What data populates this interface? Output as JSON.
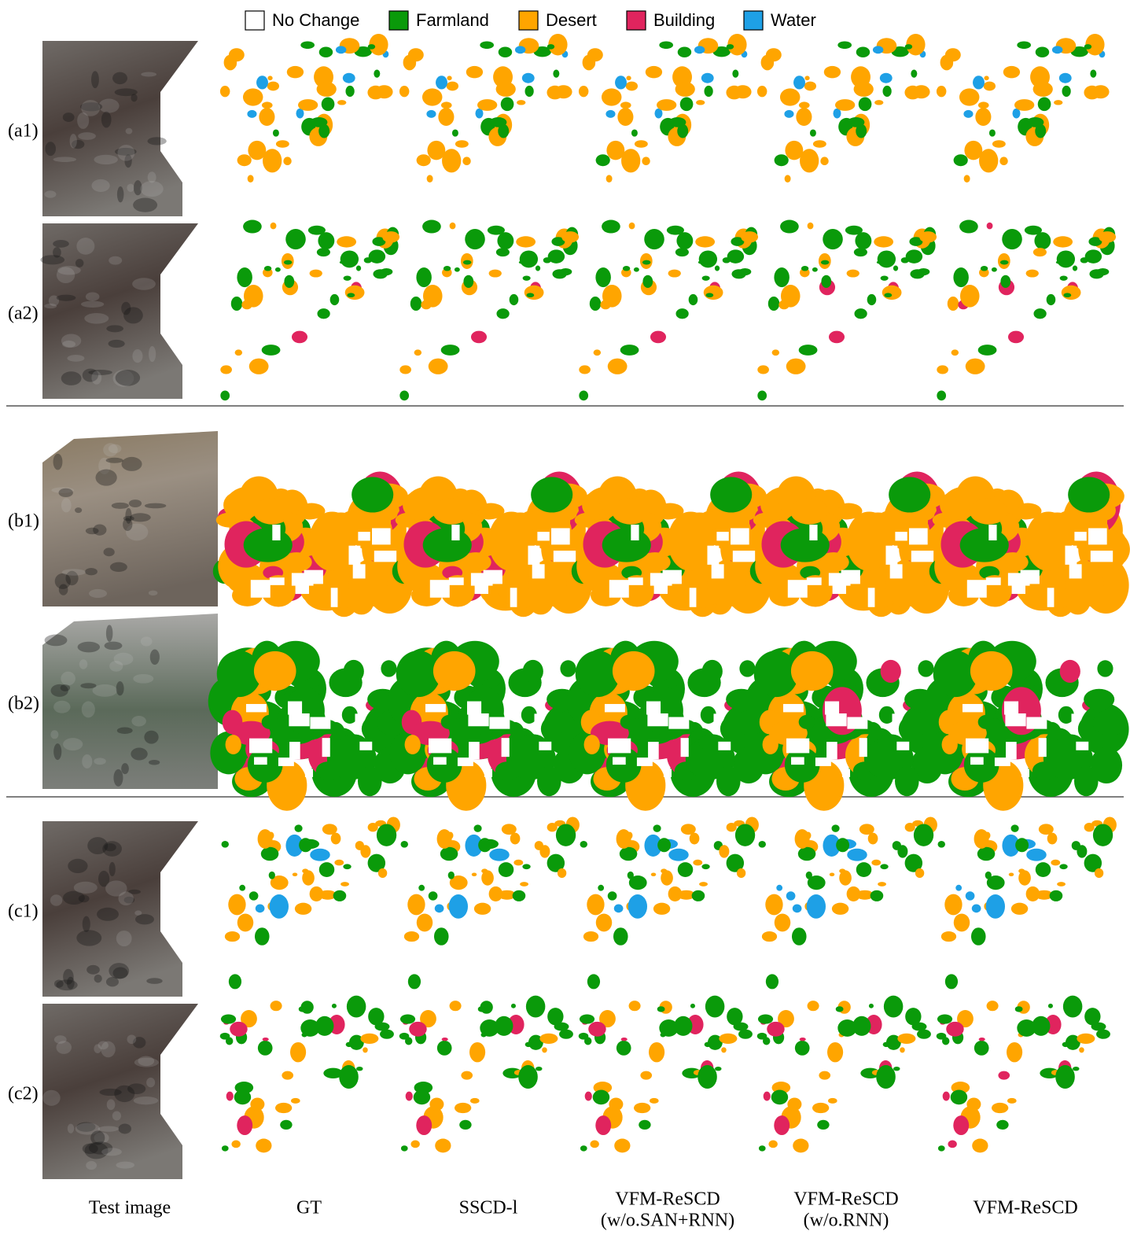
{
  "legend": [
    {
      "label": "No Change",
      "color": "#ffffff"
    },
    {
      "label": "Farmland",
      "color": "#0a9a0a"
    },
    {
      "label": "Desert",
      "color": "#ffa500"
    },
    {
      "label": "Building",
      "color": "#e0245e"
    },
    {
      "label": "Water",
      "color": "#1ea0e6"
    }
  ],
  "rows": [
    "(a1)",
    "(a2)",
    "(b1)",
    "(b2)",
    "(c1)",
    "(c2)"
  ],
  "columns": [
    [
      "Test image"
    ],
    [
      "GT"
    ],
    [
      "SSCD-l"
    ],
    [
      "VFM-ReSCD",
      "(w/o.SAN+RNN)"
    ],
    [
      "VFM-ReSCD",
      "(w/o.RNN)"
    ],
    [
      "VFM-ReSCD"
    ]
  ]
}
